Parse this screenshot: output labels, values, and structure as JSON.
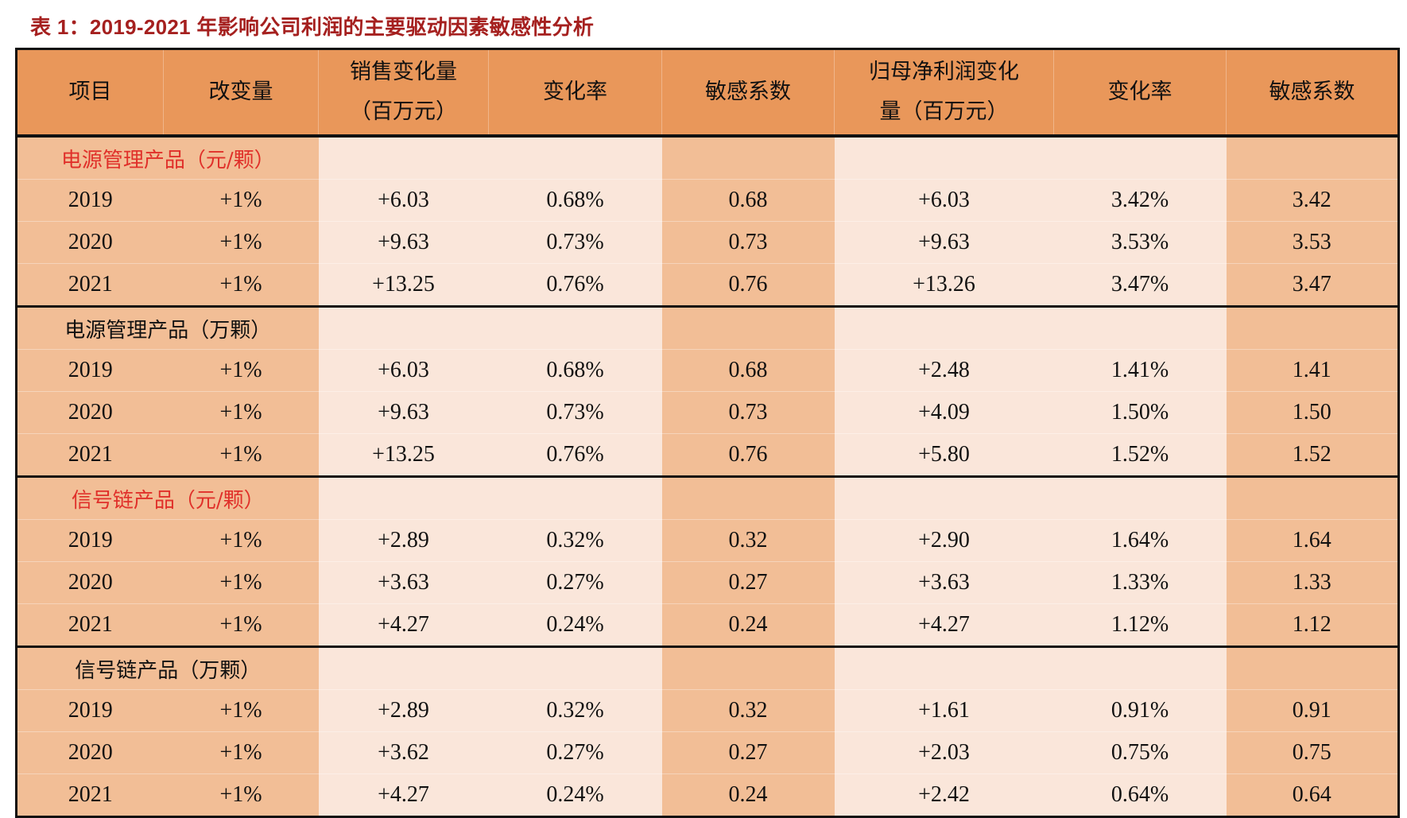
{
  "title": "表 1：2019-2021 年影响公司利润的主要驱动因素敏感性分析",
  "colors": {
    "title": "#a5201f",
    "header_bg": "#E9975A",
    "medium_bg": "#F2BE96",
    "light_bg": "#FAE6DA",
    "section_red": "#E0302A"
  },
  "table": {
    "headers": [
      {
        "line1": "项目",
        "line2": ""
      },
      {
        "line1": "改变量",
        "line2": ""
      },
      {
        "line1": "销售变化量",
        "line2": "（百万元）"
      },
      {
        "line1": "变化率",
        "line2": ""
      },
      {
        "line1": "敏感系数",
        "line2": ""
      },
      {
        "line1": "归母净利润变化",
        "line2": "量（百万元）"
      },
      {
        "line1": "变化率",
        "line2": ""
      },
      {
        "line1": "敏感系数",
        "line2": ""
      }
    ],
    "sections": [
      {
        "label": "电源管理产品（元/颗）",
        "label_color": "red",
        "rows": [
          {
            "year": "2019",
            "change": "+1%",
            "sales_change": "+6.03",
            "sales_rate": "0.68%",
            "sales_coef": "0.68",
            "profit_change": "+6.03",
            "profit_rate": "3.42%",
            "profit_coef": "3.42"
          },
          {
            "year": "2020",
            "change": "+1%",
            "sales_change": "+9.63",
            "sales_rate": "0.73%",
            "sales_coef": "0.73",
            "profit_change": "+9.63",
            "profit_rate": "3.53%",
            "profit_coef": "3.53"
          },
          {
            "year": "2021",
            "change": "+1%",
            "sales_change": "+13.25",
            "sales_rate": "0.76%",
            "sales_coef": "0.76",
            "profit_change": "+13.26",
            "profit_rate": "3.47%",
            "profit_coef": "3.47"
          }
        ]
      },
      {
        "label": "电源管理产品（万颗）",
        "label_color": "black",
        "rows": [
          {
            "year": "2019",
            "change": "+1%",
            "sales_change": "+6.03",
            "sales_rate": "0.68%",
            "sales_coef": "0.68",
            "profit_change": "+2.48",
            "profit_rate": "1.41%",
            "profit_coef": "1.41"
          },
          {
            "year": "2020",
            "change": "+1%",
            "sales_change": "+9.63",
            "sales_rate": "0.73%",
            "sales_coef": "0.73",
            "profit_change": "+4.09",
            "profit_rate": "1.50%",
            "profit_coef": "1.50"
          },
          {
            "year": "2021",
            "change": "+1%",
            "sales_change": "+13.25",
            "sales_rate": "0.76%",
            "sales_coef": "0.76",
            "profit_change": "+5.80",
            "profit_rate": "1.52%",
            "profit_coef": "1.52"
          }
        ]
      },
      {
        "label": "信号链产品（元/颗）",
        "label_color": "red",
        "rows": [
          {
            "year": "2019",
            "change": "+1%",
            "sales_change": "+2.89",
            "sales_rate": "0.32%",
            "sales_coef": "0.32",
            "profit_change": "+2.90",
            "profit_rate": "1.64%",
            "profit_coef": "1.64"
          },
          {
            "year": "2020",
            "change": "+1%",
            "sales_change": "+3.63",
            "sales_rate": "0.27%",
            "sales_coef": "0.27",
            "profit_change": "+3.63",
            "profit_rate": "1.33%",
            "profit_coef": "1.33"
          },
          {
            "year": "2021",
            "change": "+1%",
            "sales_change": "+4.27",
            "sales_rate": "0.24%",
            "sales_coef": "0.24",
            "profit_change": "+4.27",
            "profit_rate": "1.12%",
            "profit_coef": "1.12"
          }
        ]
      },
      {
        "label": "信号链产品（万颗）",
        "label_color": "black",
        "rows": [
          {
            "year": "2019",
            "change": "+1%",
            "sales_change": "+2.89",
            "sales_rate": "0.32%",
            "sales_coef": "0.32",
            "profit_change": "+1.61",
            "profit_rate": "0.91%",
            "profit_coef": "0.91"
          },
          {
            "year": "2020",
            "change": "+1%",
            "sales_change": "+3.62",
            "sales_rate": "0.27%",
            "sales_coef": "0.27",
            "profit_change": "+2.03",
            "profit_rate": "0.75%",
            "profit_coef": "0.75"
          },
          {
            "year": "2021",
            "change": "+1%",
            "sales_change": "+4.27",
            "sales_rate": "0.24%",
            "sales_coef": "0.24",
            "profit_change": "+2.42",
            "profit_rate": "0.64%",
            "profit_coef": "0.64"
          }
        ]
      }
    ]
  }
}
